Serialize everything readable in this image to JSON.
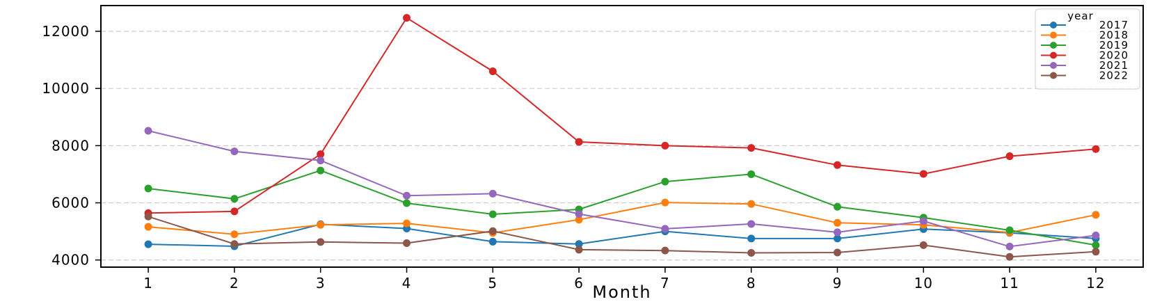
{
  "chart_data": {
    "type": "line",
    "title": "",
    "xlabel": "Month",
    "ylabel": "",
    "x": [
      1,
      2,
      3,
      4,
      5,
      6,
      7,
      8,
      9,
      10,
      11,
      12
    ],
    "xticks": [
      "1",
      "2",
      "3",
      "4",
      "5",
      "6",
      "7",
      "8",
      "9",
      "10",
      "11",
      "12"
    ],
    "yticks": [
      4000,
      6000,
      8000,
      10000,
      12000
    ],
    "xlim": [
      0.45,
      12.55
    ],
    "ylim": [
      3750,
      12900
    ],
    "grid": "horizontal dashed",
    "legend": {
      "title": "year",
      "placement": "top-right"
    },
    "series": [
      {
        "name": "2017",
        "color": "#1f77b4",
        "values": [
          4550,
          4480,
          5250,
          5100,
          4640,
          4560,
          5000,
          4750,
          4750,
          5080,
          4950,
          4750
        ]
      },
      {
        "name": "2018",
        "color": "#ff7f0e",
        "values": [
          5160,
          4900,
          5230,
          5280,
          4950,
          5410,
          6010,
          5960,
          5300,
          5230,
          4960,
          5580
        ]
      },
      {
        "name": "2019",
        "color": "#2ca02c",
        "values": [
          6500,
          6140,
          7130,
          5990,
          5600,
          5770,
          6740,
          7000,
          5860,
          5480,
          5040,
          4520
        ]
      },
      {
        "name": "2020",
        "color": "#d62728",
        "values": [
          5640,
          5700,
          7700,
          12470,
          10600,
          8130,
          8000,
          7920,
          7320,
          7010,
          7630,
          7880
        ]
      },
      {
        "name": "2021",
        "color": "#9467bd",
        "values": [
          8520,
          7800,
          7480,
          6250,
          6320,
          5610,
          5090,
          5260,
          4970,
          5360,
          4470,
          4860
        ]
      },
      {
        "name": "2022",
        "color": "#8c564b",
        "values": [
          5520,
          4560,
          4630,
          4590,
          5010,
          4360,
          4330,
          4250,
          4260,
          4520,
          4110,
          4290
        ]
      }
    ]
  }
}
